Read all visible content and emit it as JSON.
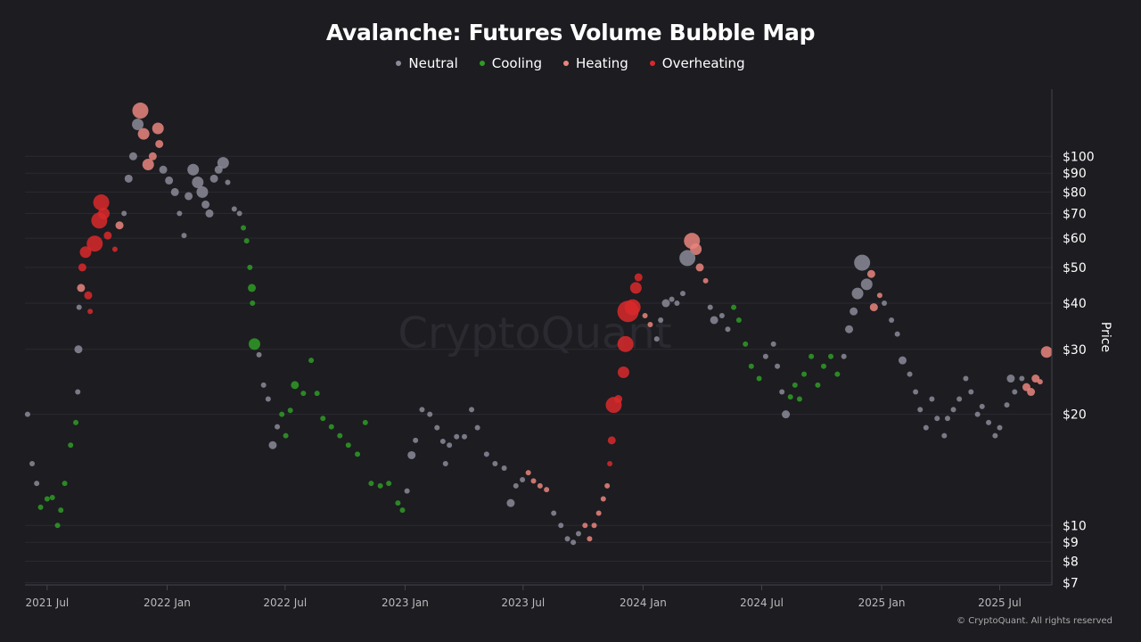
{
  "chart_data": {
    "type": "scatter",
    "title": "Avalanche: Futures Volume Bubble Map",
    "ylabel": "Price",
    "xlabel": "",
    "y_scale": "log",
    "ylim": [
      6.9,
      152
    ],
    "xlim": [
      "2021-05-28",
      "2025-09-19"
    ],
    "grid": "horizontal",
    "watermark": "CryptoQuant",
    "copyright": "© CryptoQuant. All rights reserved",
    "legend_position": "top",
    "x_ticks": [
      {
        "date": "2021-07-01",
        "label": "2021 Jul"
      },
      {
        "date": "2022-01-01",
        "label": "2022 Jan"
      },
      {
        "date": "2022-07-01",
        "label": "2022 Jul"
      },
      {
        "date": "2023-01-01",
        "label": "2023 Jan"
      },
      {
        "date": "2023-07-01",
        "label": "2023 Jul"
      },
      {
        "date": "2024-01-01",
        "label": "2024 Jan"
      },
      {
        "date": "2024-07-01",
        "label": "2024 Jul"
      },
      {
        "date": "2025-01-01",
        "label": "2025 Jan"
      },
      {
        "date": "2025-07-01",
        "label": "2025 Jul"
      }
    ],
    "y_ticks": [
      {
        "value": 100,
        "label": "$100"
      },
      {
        "value": 90,
        "label": "$90"
      },
      {
        "value": 80,
        "label": "$80"
      },
      {
        "value": 70,
        "label": "$70"
      },
      {
        "value": 60,
        "label": "$60"
      },
      {
        "value": 50,
        "label": "$50"
      },
      {
        "value": 40,
        "label": "$40"
      },
      {
        "value": 30,
        "label": "$30"
      },
      {
        "value": 20,
        "label": "$20"
      },
      {
        "value": 10,
        "label": "$10"
      },
      {
        "value": 9,
        "label": "$9"
      },
      {
        "value": 8,
        "label": "$8"
      },
      {
        "value": 7,
        "label": "$7"
      }
    ],
    "series": [
      {
        "name": "Neutral",
        "key": "N",
        "color": "#8b8a98"
      },
      {
        "name": "Cooling",
        "key": "C",
        "color": "#2f9b24"
      },
      {
        "name": "Heating",
        "key": "H",
        "color": "#e9857c"
      },
      {
        "name": "Overheating",
        "key": "O",
        "color": "#d9292a"
      }
    ],
    "points_format": [
      "date",
      "price",
      "category",
      "volume_level"
    ],
    "points": [
      [
        "2021-06-01",
        20,
        "N",
        1
      ],
      [
        "2021-06-08",
        14.7,
        "N",
        1
      ],
      [
        "2021-06-15",
        13,
        "N",
        1
      ],
      [
        "2021-06-21",
        11.2,
        "C",
        1
      ],
      [
        "2021-07-01",
        11.8,
        "C",
        1
      ],
      [
        "2021-07-09",
        11.9,
        "C",
        1
      ],
      [
        "2021-07-17",
        10,
        "C",
        1
      ],
      [
        "2021-07-22",
        11,
        "C",
        1
      ],
      [
        "2021-07-28",
        13,
        "C",
        1
      ],
      [
        "2021-08-06",
        16.5,
        "C",
        1
      ],
      [
        "2021-08-14",
        19,
        "C",
        1
      ],
      [
        "2021-08-17",
        23,
        "N",
        1
      ],
      [
        "2021-08-18",
        30,
        "N",
        2
      ],
      [
        "2021-08-19",
        39,
        "N",
        1
      ],
      [
        "2021-08-22",
        44,
        "H",
        2
      ],
      [
        "2021-08-24",
        50,
        "O",
        2
      ],
      [
        "2021-08-29",
        55,
        "O",
        3
      ],
      [
        "2021-09-02",
        42,
        "O",
        2
      ],
      [
        "2021-09-05",
        38,
        "O",
        1
      ],
      [
        "2021-09-12",
        58,
        "O",
        4
      ],
      [
        "2021-09-19",
        67,
        "O",
        4
      ],
      [
        "2021-09-22",
        75,
        "O",
        4
      ],
      [
        "2021-09-26",
        70,
        "O",
        3
      ],
      [
        "2021-10-02",
        61,
        "O",
        2
      ],
      [
        "2021-10-13",
        56,
        "O",
        1
      ],
      [
        "2021-10-20",
        65,
        "H",
        2
      ],
      [
        "2021-10-27",
        70,
        "N",
        1
      ],
      [
        "2021-11-03",
        87,
        "N",
        2
      ],
      [
        "2021-11-10",
        100,
        "N",
        2
      ],
      [
        "2021-11-17",
        122,
        "N",
        3
      ],
      [
        "2021-11-21",
        133,
        "H",
        4
      ],
      [
        "2021-11-26",
        115,
        "H",
        3
      ],
      [
        "2021-12-03",
        95,
        "H",
        3
      ],
      [
        "2021-12-10",
        100,
        "H",
        2
      ],
      [
        "2021-12-18",
        119,
        "H",
        3
      ],
      [
        "2021-12-20",
        108,
        "H",
        2
      ],
      [
        "2021-12-26",
        92,
        "N",
        2
      ],
      [
        "2022-01-04",
        86,
        "N",
        2
      ],
      [
        "2022-01-13",
        80,
        "N",
        2
      ],
      [
        "2022-01-20",
        70,
        "N",
        1
      ],
      [
        "2022-01-27",
        61,
        "N",
        1
      ],
      [
        "2022-02-03",
        78,
        "N",
        2
      ],
      [
        "2022-02-10",
        92,
        "N",
        3
      ],
      [
        "2022-02-17",
        85,
        "N",
        3
      ],
      [
        "2022-02-24",
        80,
        "N",
        3
      ],
      [
        "2022-03-01",
        74,
        "N",
        2
      ],
      [
        "2022-03-07",
        70,
        "N",
        2
      ],
      [
        "2022-03-14",
        87,
        "N",
        2
      ],
      [
        "2022-03-21",
        92,
        "N",
        2
      ],
      [
        "2022-03-28",
        96,
        "N",
        3
      ],
      [
        "2022-04-04",
        85,
        "N",
        1
      ],
      [
        "2022-04-14",
        72,
        "N",
        1
      ],
      [
        "2022-04-22",
        70,
        "N",
        1
      ],
      [
        "2022-04-28",
        64,
        "C",
        1
      ],
      [
        "2022-05-03",
        59,
        "C",
        1
      ],
      [
        "2022-05-08",
        50,
        "C",
        1
      ],
      [
        "2022-05-11",
        44,
        "C",
        2
      ],
      [
        "2022-05-12",
        40,
        "C",
        1
      ],
      [
        "2022-05-15",
        31,
        "C",
        3
      ],
      [
        "2022-05-22",
        29,
        "N",
        1
      ],
      [
        "2022-05-29",
        24,
        "N",
        1
      ],
      [
        "2022-06-05",
        22,
        "N",
        1
      ],
      [
        "2022-06-12",
        16.5,
        "N",
        2
      ],
      [
        "2022-06-19",
        18.5,
        "N",
        1
      ],
      [
        "2022-06-26",
        20,
        "C",
        1
      ],
      [
        "2022-07-02",
        17.5,
        "C",
        1
      ],
      [
        "2022-07-09",
        20.5,
        "C",
        1
      ],
      [
        "2022-07-16",
        24,
        "C",
        2
      ],
      [
        "2022-07-29",
        22.8,
        "C",
        1
      ],
      [
        "2022-08-10",
        28,
        "C",
        1
      ],
      [
        "2022-08-19",
        22.8,
        "C",
        1
      ],
      [
        "2022-08-28",
        19.5,
        "C",
        1
      ],
      [
        "2022-09-10",
        18.5,
        "C",
        1
      ],
      [
        "2022-09-23",
        17.5,
        "C",
        1
      ],
      [
        "2022-10-06",
        16.5,
        "C",
        1
      ],
      [
        "2022-10-20",
        15.6,
        "C",
        1
      ],
      [
        "2022-11-01",
        19,
        "C",
        1
      ],
      [
        "2022-11-10",
        13,
        "C",
        1
      ],
      [
        "2022-11-24",
        12.8,
        "C",
        1
      ],
      [
        "2022-12-07",
        13,
        "C",
        1
      ],
      [
        "2022-12-21",
        11.5,
        "C",
        1
      ],
      [
        "2022-12-28",
        11,
        "C",
        1
      ],
      [
        "2023-01-04",
        12.4,
        "N",
        1
      ],
      [
        "2023-01-11",
        15.5,
        "N",
        2
      ],
      [
        "2023-01-17",
        17,
        "N",
        1
      ],
      [
        "2023-01-27",
        20.6,
        "N",
        1
      ],
      [
        "2023-02-08",
        20,
        "N",
        1
      ],
      [
        "2023-02-19",
        18.4,
        "N",
        1
      ],
      [
        "2023-02-28",
        16.9,
        "N",
        1
      ],
      [
        "2023-03-04",
        14.7,
        "N",
        1
      ],
      [
        "2023-03-10",
        16.5,
        "N",
        1
      ],
      [
        "2023-03-21",
        17.4,
        "N",
        1
      ],
      [
        "2023-04-02",
        17.4,
        "N",
        1
      ],
      [
        "2023-04-13",
        20.6,
        "N",
        1
      ],
      [
        "2023-04-22",
        18.4,
        "N",
        1
      ],
      [
        "2023-05-06",
        15.6,
        "N",
        1
      ],
      [
        "2023-05-19",
        14.7,
        "N",
        1
      ],
      [
        "2023-06-02",
        14.3,
        "N",
        1
      ],
      [
        "2023-06-12",
        11.5,
        "N",
        2
      ],
      [
        "2023-06-20",
        12.8,
        "N",
        1
      ],
      [
        "2023-06-30",
        13.3,
        "N",
        1
      ],
      [
        "2023-07-09",
        13.9,
        "H",
        1
      ],
      [
        "2023-07-17",
        13.2,
        "H",
        1
      ],
      [
        "2023-07-27",
        12.8,
        "H",
        1
      ],
      [
        "2023-08-06",
        12.5,
        "H",
        1
      ],
      [
        "2023-08-17",
        10.8,
        "N",
        1
      ],
      [
        "2023-08-28",
        10,
        "N",
        1
      ],
      [
        "2023-09-07",
        9.2,
        "N",
        1
      ],
      [
        "2023-09-16",
        9,
        "N",
        1
      ],
      [
        "2023-09-24",
        9.5,
        "N",
        1
      ],
      [
        "2023-10-04",
        10,
        "H",
        1
      ],
      [
        "2023-10-11",
        9.2,
        "H",
        1
      ],
      [
        "2023-10-18",
        10,
        "H",
        1
      ],
      [
        "2023-10-25",
        10.8,
        "H",
        1
      ],
      [
        "2023-11-01",
        11.8,
        "H",
        1
      ],
      [
        "2023-11-07",
        12.8,
        "H",
        1
      ],
      [
        "2023-11-11",
        14.7,
        "O",
        1
      ],
      [
        "2023-11-14",
        17,
        "O",
        2
      ],
      [
        "2023-11-17",
        21.2,
        "O",
        4
      ],
      [
        "2023-11-24",
        22,
        "O",
        2
      ],
      [
        "2023-12-02",
        26,
        "O",
        3
      ],
      [
        "2023-12-05",
        31,
        "O",
        4
      ],
      [
        "2023-12-09",
        38,
        "O",
        5
      ],
      [
        "2023-12-16",
        39,
        "O",
        4
      ],
      [
        "2023-12-21",
        44,
        "O",
        3
      ],
      [
        "2023-12-25",
        47,
        "O",
        2
      ],
      [
        "2024-01-04",
        37,
        "H",
        1
      ],
      [
        "2024-01-12",
        35,
        "H",
        1
      ],
      [
        "2024-01-22",
        32,
        "N",
        1
      ],
      [
        "2024-01-28",
        36,
        "N",
        1
      ],
      [
        "2024-02-05",
        40,
        "N",
        2
      ],
      [
        "2024-02-14",
        41,
        "N",
        1
      ],
      [
        "2024-02-22",
        40,
        "N",
        1
      ],
      [
        "2024-03-02",
        42.5,
        "N",
        1
      ],
      [
        "2024-03-09",
        53,
        "N",
        4
      ],
      [
        "2024-03-16",
        59,
        "H",
        4
      ],
      [
        "2024-03-22",
        56,
        "H",
        3
      ],
      [
        "2024-03-28",
        50,
        "H",
        2
      ],
      [
        "2024-04-06",
        46,
        "H",
        1
      ],
      [
        "2024-04-13",
        39,
        "N",
        1
      ],
      [
        "2024-04-19",
        36,
        "N",
        2
      ],
      [
        "2024-05-01",
        37,
        "N",
        1
      ],
      [
        "2024-05-10",
        34,
        "N",
        1
      ],
      [
        "2024-05-19",
        39,
        "C",
        1
      ],
      [
        "2024-05-27",
        36,
        "C",
        1
      ],
      [
        "2024-06-06",
        31,
        "C",
        1
      ],
      [
        "2024-06-15",
        27,
        "C",
        1
      ],
      [
        "2024-06-27",
        25,
        "C",
        1
      ],
      [
        "2024-07-07",
        28.7,
        "N",
        1
      ],
      [
        "2024-07-19",
        31,
        "N",
        1
      ],
      [
        "2024-07-25",
        27,
        "N",
        1
      ],
      [
        "2024-08-01",
        23,
        "N",
        1
      ],
      [
        "2024-08-07",
        20,
        "N",
        2
      ],
      [
        "2024-08-14",
        22.3,
        "C",
        1
      ],
      [
        "2024-08-21",
        24,
        "C",
        1
      ],
      [
        "2024-08-28",
        22,
        "C",
        1
      ],
      [
        "2024-09-04",
        25.7,
        "C",
        1
      ],
      [
        "2024-09-15",
        28.7,
        "C",
        1
      ],
      [
        "2024-09-25",
        24,
        "C",
        1
      ],
      [
        "2024-10-04",
        27,
        "C",
        1
      ],
      [
        "2024-10-15",
        28.7,
        "C",
        1
      ],
      [
        "2024-10-25",
        25.7,
        "C",
        1
      ],
      [
        "2024-11-04",
        28.7,
        "N",
        1
      ],
      [
        "2024-11-12",
        34,
        "N",
        2
      ],
      [
        "2024-11-19",
        38,
        "N",
        2
      ],
      [
        "2024-11-25",
        42.5,
        "N",
        3
      ],
      [
        "2024-12-02",
        51.5,
        "N",
        4
      ],
      [
        "2024-12-09",
        45,
        "N",
        3
      ],
      [
        "2024-12-16",
        48,
        "H",
        2
      ],
      [
        "2024-12-20",
        39,
        "H",
        2
      ],
      [
        "2024-12-29",
        42,
        "H",
        1
      ],
      [
        "2025-01-05",
        40,
        "N",
        1
      ],
      [
        "2025-01-16",
        36,
        "N",
        1
      ],
      [
        "2025-01-25",
        33,
        "N",
        1
      ],
      [
        "2025-02-02",
        28,
        "N",
        2
      ],
      [
        "2025-02-13",
        25.7,
        "N",
        1
      ],
      [
        "2025-02-22",
        23,
        "N",
        1
      ],
      [
        "2025-03-01",
        20.6,
        "N",
        1
      ],
      [
        "2025-03-10",
        18.4,
        "N",
        1
      ],
      [
        "2025-03-19",
        22,
        "N",
        1
      ],
      [
        "2025-03-27",
        19.5,
        "N",
        1
      ],
      [
        "2025-04-07",
        17.5,
        "N",
        1
      ],
      [
        "2025-04-12",
        19.5,
        "N",
        1
      ],
      [
        "2025-04-21",
        20.6,
        "N",
        1
      ],
      [
        "2025-04-30",
        22,
        "N",
        1
      ],
      [
        "2025-05-10",
        25,
        "N",
        1
      ],
      [
        "2025-05-18",
        23,
        "N",
        1
      ],
      [
        "2025-05-28",
        20,
        "N",
        1
      ],
      [
        "2025-06-04",
        21,
        "N",
        1
      ],
      [
        "2025-06-14",
        19,
        "N",
        1
      ],
      [
        "2025-06-24",
        17.5,
        "N",
        1
      ],
      [
        "2025-07-01",
        18.4,
        "N",
        1
      ],
      [
        "2025-07-12",
        21.2,
        "N",
        1
      ],
      [
        "2025-07-18",
        25,
        "N",
        2
      ],
      [
        "2025-07-24",
        23,
        "N",
        1
      ],
      [
        "2025-08-04",
        25,
        "N",
        1
      ],
      [
        "2025-08-11",
        23.7,
        "H",
        2
      ],
      [
        "2025-08-18",
        23,
        "H",
        2
      ],
      [
        "2025-08-25",
        25,
        "H",
        2
      ],
      [
        "2025-09-01",
        24.5,
        "H",
        1
      ],
      [
        "2025-09-11",
        29.5,
        "H",
        3
      ]
    ]
  }
}
